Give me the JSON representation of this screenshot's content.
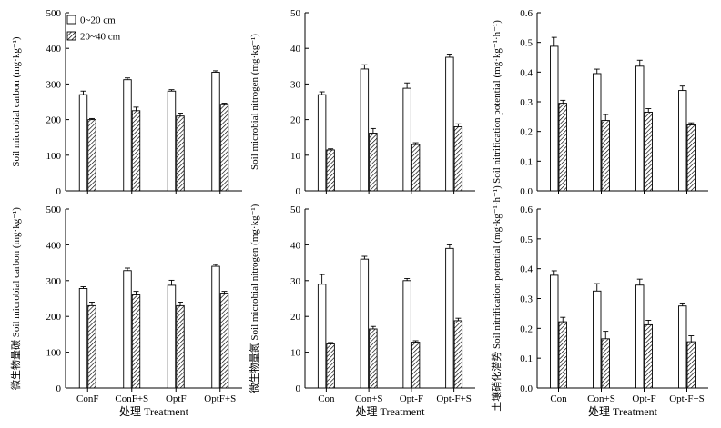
{
  "legend": {
    "items": [
      {
        "label": "0~20 cm",
        "pattern": "open"
      },
      {
        "label": "20~40 cm",
        "pattern": "hatched"
      }
    ]
  },
  "chart_data": [
    {
      "type": "bar",
      "id": "mbc-a",
      "ylabel": "Soil microbial carbon (mg·kg⁻¹)",
      "ylim": [
        0,
        500
      ],
      "yticks": [
        0,
        100,
        200,
        300,
        400,
        500
      ],
      "categories": [
        "ConF",
        "ConF+S",
        "OptF",
        "OptF+S"
      ],
      "show_xticklabels": false,
      "xlabel": "",
      "series": [
        {
          "name": "0~20 cm",
          "values": [
            270,
            312,
            280,
            333
          ],
          "errors": [
            10,
            5,
            4,
            4
          ]
        },
        {
          "name": "20~40 cm",
          "values": [
            200,
            225,
            210,
            243
          ],
          "errors": [
            3,
            10,
            8,
            3
          ]
        }
      ]
    },
    {
      "type": "bar",
      "id": "mbn-a",
      "ylabel": "Soil microbial nitrogen (mg·kg⁻¹)",
      "ylim": [
        0,
        50
      ],
      "yticks": [
        0,
        10,
        20,
        30,
        40,
        50
      ],
      "categories": [
        "Con",
        "Con+S",
        "Opt-F",
        "Opt-F+S"
      ],
      "show_xticklabels": false,
      "xlabel": "",
      "series": [
        {
          "name": "0~20 cm",
          "values": [
            27,
            34.2,
            28.8,
            37.5
          ],
          "errors": [
            0.8,
            1.2,
            1.5,
            0.9
          ]
        },
        {
          "name": "20~40 cm",
          "values": [
            11.5,
            16.2,
            13,
            18
          ],
          "errors": [
            0.3,
            1.3,
            0.5,
            0.8
          ]
        }
      ]
    },
    {
      "type": "bar",
      "id": "nit-a",
      "ylabel": "Soil nitrification potential (mg·kg⁻¹·h⁻¹)",
      "ylim": [
        0,
        0.6
      ],
      "yticks": [
        "0.0",
        "0.1",
        "0.2",
        "0.3",
        "0.4",
        "0.5",
        "0.6"
      ],
      "categories": [
        "Con",
        "Con+S",
        "Opt-F",
        "Opt-F+S"
      ],
      "show_xticklabels": false,
      "xlabel": "",
      "series": [
        {
          "name": "0~20 cm",
          "values": [
            0.487,
            0.395,
            0.42,
            0.338
          ],
          "errors": [
            0.03,
            0.015,
            0.02,
            0.015
          ]
        },
        {
          "name": "20~40 cm",
          "values": [
            0.295,
            0.237,
            0.265,
            0.222
          ],
          "errors": [
            0.01,
            0.02,
            0.012,
            0.007
          ]
        }
      ]
    },
    {
      "type": "bar",
      "id": "mbc-b",
      "ylabel": "微生物量碳 Soil microbial carbon (mg·kg⁻¹)",
      "ylim": [
        0,
        500
      ],
      "yticks": [
        0,
        100,
        200,
        300,
        400,
        500
      ],
      "categories": [
        "ConF",
        "ConF+S",
        "OptF",
        "OptF+S"
      ],
      "show_xticklabels": true,
      "xlabel": "处理 Treatment",
      "series": [
        {
          "name": "0~20 cm",
          "values": [
            278,
            328,
            287,
            340
          ],
          "errors": [
            5,
            7,
            14,
            5
          ]
        },
        {
          "name": "20~40 cm",
          "values": [
            230,
            260,
            230,
            265
          ],
          "errors": [
            10,
            10,
            10,
            5
          ]
        }
      ]
    },
    {
      "type": "bar",
      "id": "mbn-b",
      "ylabel": "微生物量氮 Soil microbial nitrogen (mg·kg⁻¹)",
      "ylim": [
        0,
        50
      ],
      "yticks": [
        0,
        10,
        20,
        30,
        40,
        50
      ],
      "categories": [
        "Con",
        "Con+S",
        "Opt-F",
        "Opt-F+S"
      ],
      "show_xticklabels": true,
      "xlabel": "处理 Treatment",
      "series": [
        {
          "name": "0~20 cm",
          "values": [
            29,
            36,
            30,
            39
          ],
          "errors": [
            2.7,
            0.8,
            0.6,
            1
          ]
        },
        {
          "name": "20~40 cm",
          "values": [
            12.3,
            16.5,
            12.8,
            18.8
          ],
          "errors": [
            0.4,
            0.7,
            0.4,
            0.7
          ]
        }
      ]
    },
    {
      "type": "bar",
      "id": "nit-b",
      "ylabel": "土壤硝化潜势 Soil nitrification potential (mg·kg⁻¹·h⁻¹)",
      "ylim": [
        0,
        0.6
      ],
      "yticks": [
        "0.0",
        "0.1",
        "0.2",
        "0.3",
        "0.4",
        "0.5",
        "0.6"
      ],
      "categories": [
        "Con",
        "Con+S",
        "Opt-F",
        "Opt-F+S"
      ],
      "show_xticklabels": true,
      "xlabel": "处理 Treatment",
      "series": [
        {
          "name": "0~20 cm",
          "values": [
            0.378,
            0.325,
            0.345,
            0.275
          ],
          "errors": [
            0.015,
            0.025,
            0.02,
            0.01
          ]
        },
        {
          "name": "20~40 cm",
          "values": [
            0.222,
            0.165,
            0.212,
            0.155
          ],
          "errors": [
            0.015,
            0.025,
            0.015,
            0.02
          ]
        }
      ]
    }
  ]
}
